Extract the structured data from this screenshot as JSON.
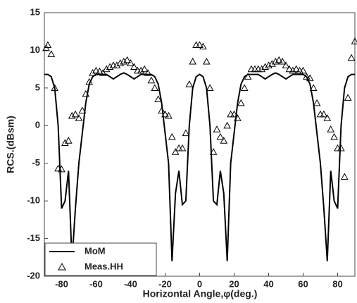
{
  "chart_data": {
    "type": "line",
    "xlabel": "Horizontal Angle,φ(deg.)",
    "ylabel": "RCS.(dBsm)",
    "xlim": [
      -90,
      90
    ],
    "xticks": [
      -80,
      -60,
      -40,
      -20,
      0,
      20,
      40,
      60,
      80
    ],
    "ylim": [
      -20,
      15
    ],
    "yticks": [
      -20,
      -15,
      -10,
      -5,
      0,
      5,
      10,
      15
    ],
    "legend": "lower left",
    "series": [
      {
        "name": "MoM",
        "color": "#000000",
        "style": "line",
        "x": [
          -90,
          -88,
          -86,
          -84,
          -82,
          -80,
          -78,
          -76,
          -74,
          -72,
          -70,
          -68,
          -66,
          -64,
          -62,
          -60,
          -58,
          -56,
          -54,
          -52,
          -50,
          -48,
          -46,
          -44,
          -42,
          -40,
          -38,
          -36,
          -34,
          -32,
          -30,
          -28,
          -26,
          -24,
          -22,
          -20,
          -18,
          -16,
          -14,
          -12,
          -10,
          -8,
          -6,
          -4,
          -2,
          0,
          2,
          4,
          6,
          8,
          10,
          12,
          14,
          16,
          18,
          20,
          22,
          24,
          26,
          28,
          30,
          32,
          34,
          36,
          38,
          40,
          42,
          44,
          46,
          48,
          50,
          52,
          54,
          56,
          58,
          60,
          62,
          64,
          66,
          68,
          70,
          72,
          74,
          76,
          78,
          80,
          82,
          84,
          86,
          88,
          90
        ],
        "values": [
          6.8,
          6.8,
          6.5,
          5,
          0,
          -11,
          -10,
          -6,
          -18,
          -11,
          -5,
          -1,
          3,
          5.5,
          6.5,
          6.8,
          6.8,
          6.8,
          6.8,
          6.5,
          6.2,
          6.5,
          6.8,
          7,
          6.8,
          6.5,
          6.2,
          6.5,
          6.8,
          6.8,
          6.8,
          6.8,
          6.5,
          5.5,
          3,
          -1,
          -5,
          -18,
          -9,
          -6,
          -10.5,
          -10,
          0,
          5,
          6.5,
          6.8,
          6.5,
          5,
          0,
          -10,
          -10.5,
          -6,
          -9,
          -18,
          -5,
          -1,
          3,
          5.5,
          6.5,
          6.8,
          6.8,
          6.8,
          6.8,
          6.5,
          6.2,
          6.5,
          6.8,
          7,
          6.8,
          6.5,
          6.2,
          6.5,
          6.8,
          6.8,
          6.8,
          6.8,
          6.5,
          5.5,
          3,
          -1,
          -5,
          -11,
          -18,
          -6,
          -10,
          -11,
          0,
          5,
          6.5,
          6.8,
          6.8
        ]
      },
      {
        "name": "Meas.HH",
        "color": "#000000",
        "style": "markers",
        "x": [
          -89,
          -88,
          -86,
          -84,
          -82,
          -80,
          -78,
          -76,
          -74,
          -72,
          -70,
          -68,
          -66,
          -64,
          -62,
          -60,
          -58,
          -56,
          -54,
          -52,
          -50,
          -48,
          -46,
          -44,
          -42,
          -40,
          -38,
          -36,
          -34,
          -32,
          -30,
          -28,
          -26,
          -24,
          -22,
          -20,
          -18,
          -16,
          -14,
          -12,
          -10,
          -8,
          -6,
          -4,
          -2,
          0,
          2,
          4,
          6,
          8,
          10,
          12,
          14,
          16,
          18,
          20,
          22,
          24,
          26,
          28,
          30,
          32,
          34,
          36,
          38,
          40,
          42,
          44,
          46,
          48,
          50,
          52,
          54,
          56,
          58,
          60,
          62,
          64,
          66,
          68,
          70,
          72,
          74,
          76,
          78,
          80,
          82,
          84,
          86,
          88,
          90
        ],
        "values": [
          10.3,
          10.7,
          9.5,
          5,
          -5.7,
          -5.8,
          -2.3,
          -2,
          1.3,
          1.5,
          1,
          2,
          4.2,
          5.8,
          7,
          7.3,
          7.2,
          7,
          7.5,
          7.8,
          8,
          8,
          8.3,
          8.5,
          8.7,
          8.3,
          7.8,
          7.3,
          7.3,
          7.5,
          7,
          6,
          5,
          3.5,
          2,
          1.5,
          1.3,
          -1.5,
          -3.5,
          -3,
          -3,
          -1,
          5.5,
          8.5,
          10.7,
          10.7,
          10.5,
          8.5,
          5,
          -3.5,
          -0.5,
          -1.5,
          -2,
          0,
          1.5,
          1.5,
          1,
          3,
          5,
          6.5,
          7.5,
          7.5,
          7.5,
          7.5,
          7.8,
          8,
          8.2,
          8.5,
          8.7,
          8.5,
          8,
          7.5,
          7.3,
          7.5,
          7.3,
          7.3,
          6.5,
          6.3,
          5,
          3,
          1.5,
          1.5,
          1,
          -0.5,
          -1.5,
          -3,
          -3,
          -6.8,
          3.7,
          9,
          11.2
        ]
      }
    ]
  }
}
